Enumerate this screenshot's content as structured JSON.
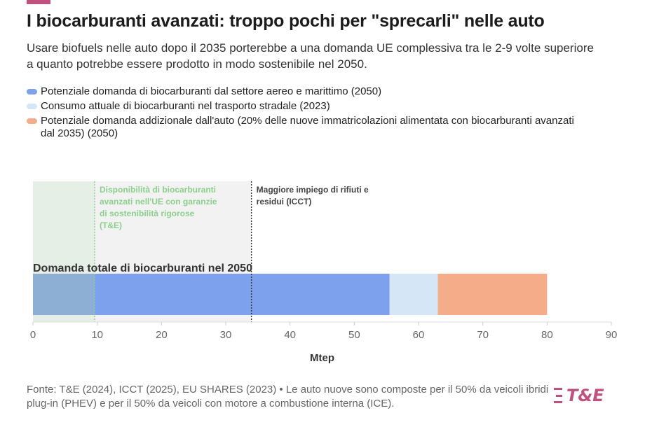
{
  "header": {
    "title": "I biocarburanti avanzati: troppo pochi per \"sprecarli\" nelle auto",
    "subtitle": "Usare biofuels nelle auto dopo il 2035 porterebbe a una domanda UE complessiva tra le 2-9 volte superiore a quanto potrebbe essere prodotto in modo sostenibile nel 2050."
  },
  "legend": [
    {
      "label": "Potenziale domanda di biocarburanti dal settore aereo e marittimo (2050)",
      "color": "#7ea1ee"
    },
    {
      "label": "Consumo attuale di biocarburanti nel trasporto stradale (2023)",
      "color": "#d5e7f6"
    },
    {
      "label": "Potenziale domanda addizionale dall'auto (20% delle nuove immatricolazioni alimentata con biocarburanti avanzati dal 2035) (2050)",
      "color": "#f4ac89"
    }
  ],
  "chart_data": {
    "type": "bar",
    "orientation": "horizontal",
    "stacked": true,
    "categories": [
      "Domanda totale di biocarburanti nel 2050"
    ],
    "series": [
      {
        "name": "Potenziale domanda di biocarburanti dal settore aereo e marittimo (2050)",
        "values": [
          55.5
        ],
        "color": "#7ea1ee"
      },
      {
        "name": "Consumo attuale di biocarburanti nel trasporto stradale (2023)",
        "values": [
          7.5
        ],
        "color": "#d5e7f6"
      },
      {
        "name": "Potenziale domanda addizionale dall'auto (20% delle nuove immatricolazioni alimentata con biocarburanti avanzati dal 2035) (2050)",
        "values": [
          17
        ],
        "color": "#f4ac89"
      }
    ],
    "xlabel": "Mtep",
    "xlim": [
      0,
      90
    ],
    "xticks": [
      0,
      10,
      20,
      30,
      40,
      50,
      60,
      70,
      80,
      90
    ],
    "grid": false,
    "annotations": [
      {
        "label": "Disponibilità di biocarburanti avanzati nell'UE con garanzie di sostenibilità rigorose (T&E)",
        "x": 9.6,
        "color": "#8bd08a",
        "band_color": "#e6efe6"
      },
      {
        "label": "Maggiore impiego di rifiuti e residui (ICCT)",
        "x": 34,
        "color": "#555555",
        "band_color": "#f2f2f2"
      }
    ]
  },
  "footer": {
    "source": "Fonte: T&E (2024), ICCT (2025), EU SHARES (2023) • Le auto nuove sono composte per il 50% da veicoli ibridi plug-in (PHEV) e per il 50% da veicoli con motore a combustione interna (ICE).",
    "logo_text": "T&E"
  }
}
